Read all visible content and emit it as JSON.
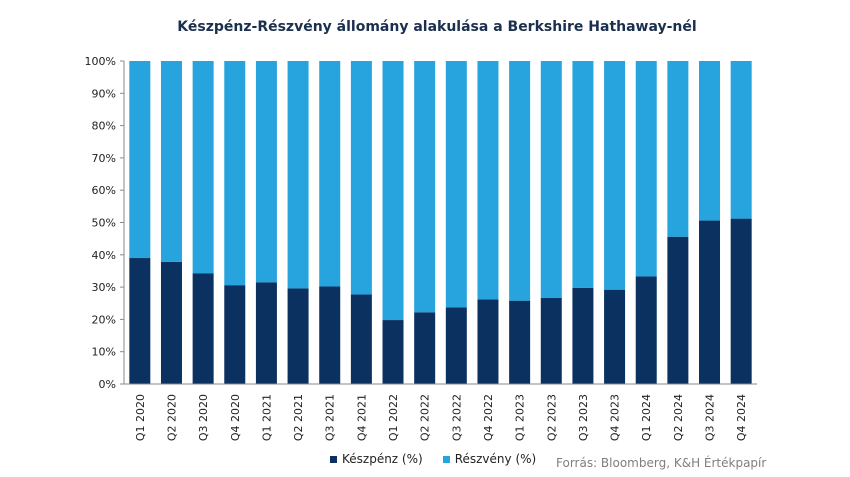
{
  "chart_data": {
    "type": "bar",
    "stacked": true,
    "title": "Készpénz-Részvény állomány alakulása a Berkshire Hathaway-nél",
    "categories": [
      "Q1 2020",
      "Q2 2020",
      "Q3 2020",
      "Q4 2020",
      "Q1 2021",
      "Q2 2021",
      "Q3 2021",
      "Q4 2021",
      "Q1 2022",
      "Q2 2022",
      "Q3 2022",
      "Q4 2022",
      "Q1 2023",
      "Q2 2023",
      "Q3 2023",
      "Q4 2023",
      "Q1 2024",
      "Q2 2024",
      "Q3 2024",
      "Q4 2024"
    ],
    "series": [
      {
        "name": "Készpénz (%)",
        "color": "#0b3160",
        "values": [
          39,
          37.8,
          34.3,
          30.6,
          31.5,
          29.6,
          30.2,
          27.7,
          19.8,
          22.2,
          23.7,
          26.2,
          25.8,
          26.7,
          29.8,
          29.2,
          33.3,
          45.6,
          50.6,
          51.2
        ]
      },
      {
        "name": "Részvény (%)",
        "color": "#27a3dd",
        "values": [
          61,
          62.2,
          65.7,
          69.4,
          68.5,
          70.4,
          69.8,
          72.3,
          80.2,
          77.8,
          76.3,
          73.8,
          74.2,
          73.3,
          70.2,
          70.8,
          66.7,
          54.4,
          49.4,
          48.8
        ]
      }
    ],
    "yticks": [
      "0%",
      "10%",
      "20%",
      "30%",
      "40%",
      "50%",
      "60%",
      "70%",
      "80%",
      "90%",
      "100%"
    ],
    "ylim": [
      0,
      100
    ],
    "legend_position": "bottom",
    "grid": false
  },
  "source": "Forrás: Bloomberg,  K&H Értékpapír"
}
